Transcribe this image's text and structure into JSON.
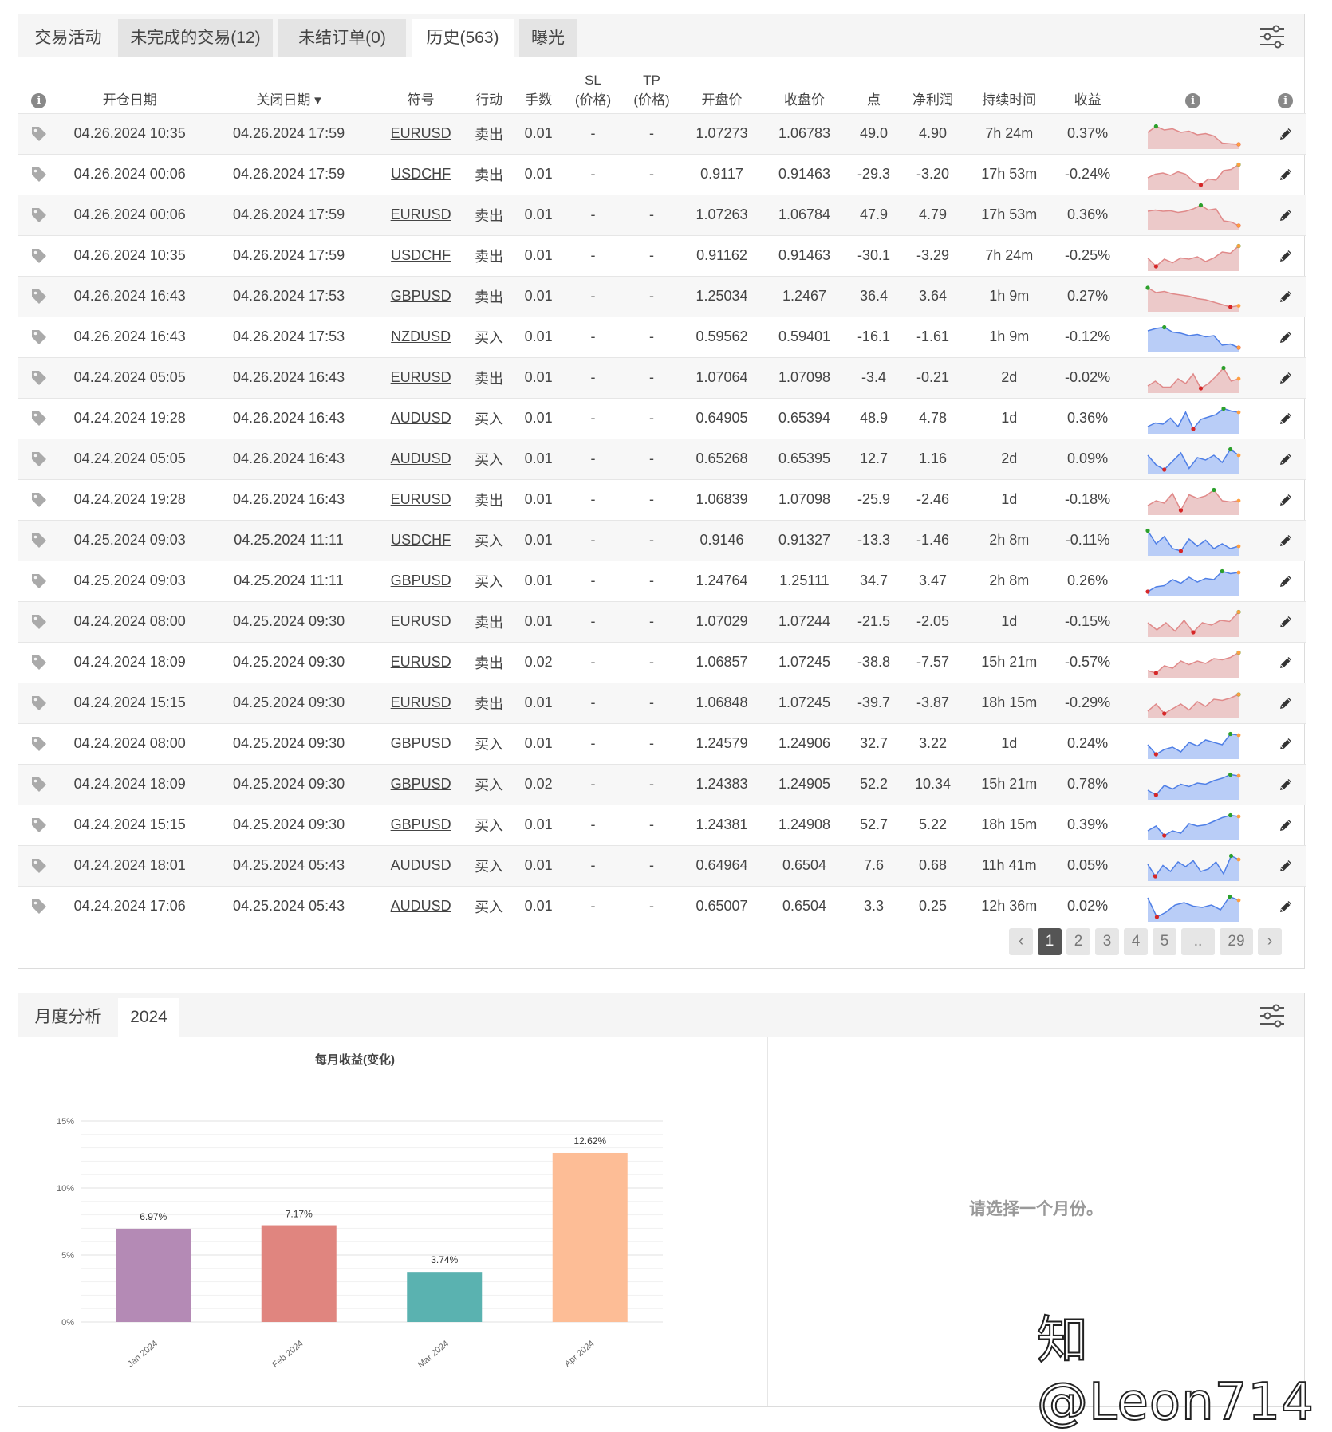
{
  "top_tabs": [
    {
      "label": "交易活动"
    },
    {
      "label": "未完成的交易(12)"
    },
    {
      "label": "未结订单(0)"
    },
    {
      "label": "历史(563)"
    },
    {
      "label": "曝光"
    }
  ],
  "columns": {
    "open_date": "开仓日期",
    "close_date": "关闭日期 ▾",
    "symbol": "符号",
    "action": "行动",
    "lots": "手数",
    "sl": "SL",
    "sl_sub": "(价格)",
    "tp": "TP",
    "tp_sub": "(价格)",
    "open_price": "开盘价",
    "close_price": "收盘价",
    "pips": "点",
    "net_profit": "净利润",
    "duration": "持续时间",
    "gain": "收益"
  },
  "colors": {
    "pos": "#2ca02c",
    "neg": "#d9534f",
    "spark_red_fill": "#ecc9c9",
    "spark_red_line": "#e08a8a",
    "spark_blue_fill": "#b9cdf7",
    "spark_blue_line": "#4f7fe6"
  },
  "trades": [
    {
      "open": "04.26.2024 10:35",
      "close": "04.26.2024 17:59",
      "symbol": "EURUSD",
      "action": "卖出",
      "lots": "0.01",
      "sl": "-",
      "tp": "-",
      "open_price": "1.07273",
      "close_price": "1.06783",
      "pips": "49.0",
      "profit": "4.90",
      "duration": "7h 24m",
      "gain": "0.37%",
      "positive": true,
      "spark": [
        0.6,
        0.85,
        0.7,
        0.75,
        0.6,
        0.65,
        0.5,
        0.55,
        0.45,
        0.15,
        0.12,
        0.1
      ],
      "spark_color": "red"
    },
    {
      "open": "04.26.2024 00:06",
      "close": "04.26.2024 17:59",
      "symbol": "USDCHF",
      "action": "卖出",
      "lots": "0.01",
      "sl": "-",
      "tp": "-",
      "open_price": "0.9117",
      "close_price": "0.91463",
      "pips": "-29.3",
      "profit": "-3.20",
      "duration": "17h 53m",
      "gain": "-0.24%",
      "positive": false,
      "spark": [
        0.4,
        0.55,
        0.6,
        0.5,
        0.65,
        0.55,
        0.25,
        0.1,
        0.35,
        0.3,
        0.7,
        0.75,
        0.95
      ],
      "spark_color": "red"
    },
    {
      "open": "04.26.2024 00:06",
      "close": "04.26.2024 17:59",
      "symbol": "EURUSD",
      "action": "卖出",
      "lots": "0.01",
      "sl": "-",
      "tp": "-",
      "open_price": "1.07263",
      "close_price": "1.06784",
      "pips": "47.9",
      "profit": "4.79",
      "duration": "17h 53m",
      "gain": "0.36%",
      "positive": true,
      "spark": [
        0.7,
        0.75,
        0.7,
        0.72,
        0.65,
        0.7,
        0.8,
        0.95,
        0.75,
        0.8,
        0.3,
        0.25,
        0.1
      ],
      "spark_color": "red"
    },
    {
      "open": "04.26.2024 10:35",
      "close": "04.26.2024 17:59",
      "symbol": "USDCHF",
      "action": "卖出",
      "lots": "0.01",
      "sl": "-",
      "tp": "-",
      "open_price": "0.91162",
      "close_price": "0.91463",
      "pips": "-30.1",
      "profit": "-3.29",
      "duration": "7h 24m",
      "gain": "-0.25%",
      "positive": false,
      "spark": [
        0.45,
        0.1,
        0.4,
        0.25,
        0.45,
        0.4,
        0.5,
        0.3,
        0.45,
        0.7,
        0.65,
        0.95
      ],
      "spark_color": "red"
    },
    {
      "open": "04.26.2024 16:43",
      "close": "04.26.2024 17:53",
      "symbol": "GBPUSD",
      "action": "卖出",
      "lots": "0.01",
      "sl": "-",
      "tp": "-",
      "open_price": "1.25034",
      "close_price": "1.2467",
      "pips": "36.4",
      "profit": "3.64",
      "duration": "1h 9m",
      "gain": "0.27%",
      "positive": true,
      "spark": [
        0.9,
        0.7,
        0.75,
        0.65,
        0.6,
        0.55,
        0.45,
        0.4,
        0.3,
        0.2,
        0.1,
        0.15
      ],
      "spark_color": "red"
    },
    {
      "open": "04.26.2024 16:43",
      "close": "04.26.2024 17:53",
      "symbol": "NZDUSD",
      "action": "买入",
      "lots": "0.01",
      "sl": "-",
      "tp": "-",
      "open_price": "0.59562",
      "close_price": "0.59401",
      "pips": "-16.1",
      "profit": "-1.61",
      "duration": "1h 9m",
      "gain": "-0.12%",
      "positive": false,
      "spark": [
        0.8,
        0.9,
        0.95,
        0.75,
        0.7,
        0.6,
        0.65,
        0.55,
        0.6,
        0.2,
        0.25,
        0.1
      ],
      "spark_color": "blue"
    },
    {
      "open": "04.24.2024 05:05",
      "close": "04.26.2024 16:43",
      "symbol": "EURUSD",
      "action": "卖出",
      "lots": "0.01",
      "sl": "-",
      "tp": "-",
      "open_price": "1.07064",
      "close_price": "1.07098",
      "pips": "-3.4",
      "profit": "-0.21",
      "duration": "2d",
      "gain": "-0.02%",
      "positive": false,
      "spark": [
        0.2,
        0.4,
        0.15,
        0.15,
        0.5,
        0.3,
        0.7,
        0.1,
        0.3,
        0.6,
        0.95,
        0.4,
        0.5
      ],
      "spark_color": "red"
    },
    {
      "open": "04.24.2024 19:28",
      "close": "04.26.2024 16:43",
      "symbol": "AUDUSD",
      "action": "买入",
      "lots": "0.01",
      "sl": "-",
      "tp": "-",
      "open_price": "0.64905",
      "close_price": "0.65394",
      "pips": "48.9",
      "profit": "4.78",
      "duration": "1d",
      "gain": "0.36%",
      "positive": true,
      "spark": [
        0.2,
        0.35,
        0.3,
        0.55,
        0.2,
        0.8,
        0.1,
        0.5,
        0.6,
        0.7,
        0.95,
        0.85,
        0.8
      ],
      "spark_color": "blue"
    },
    {
      "open": "04.24.2024 05:05",
      "close": "04.26.2024 16:43",
      "symbol": "AUDUSD",
      "action": "买入",
      "lots": "0.01",
      "sl": "-",
      "tp": "-",
      "open_price": "0.65268",
      "close_price": "0.65395",
      "pips": "12.7",
      "profit": "1.16",
      "duration": "2d",
      "gain": "0.09%",
      "positive": true,
      "spark": [
        0.7,
        0.3,
        0.1,
        0.45,
        0.8,
        0.15,
        0.6,
        0.5,
        0.7,
        0.4,
        0.95,
        0.7
      ],
      "spark_color": "blue"
    },
    {
      "open": "04.24.2024 19:28",
      "close": "04.26.2024 16:43",
      "symbol": "EURUSD",
      "action": "卖出",
      "lots": "0.01",
      "sl": "-",
      "tp": "-",
      "open_price": "1.06839",
      "close_price": "1.07098",
      "pips": "-25.9",
      "profit": "-2.46",
      "duration": "1d",
      "gain": "-0.18%",
      "positive": false,
      "spark": [
        0.3,
        0.5,
        0.4,
        0.8,
        0.1,
        0.75,
        0.6,
        0.7,
        0.95,
        0.5,
        0.45,
        0.5
      ],
      "spark_color": "red"
    },
    {
      "open": "04.25.2024 09:03",
      "close": "04.25.2024 11:11",
      "symbol": "USDCHF",
      "action": "买入",
      "lots": "0.01",
      "sl": "-",
      "tp": "-",
      "open_price": "0.9146",
      "close_price": "0.91327",
      "pips": "-13.3",
      "profit": "-1.46",
      "duration": "2h 8m",
      "gain": "-0.11%",
      "positive": false,
      "spark": [
        0.95,
        0.4,
        0.7,
        0.2,
        0.1,
        0.6,
        0.3,
        0.55,
        0.2,
        0.4,
        0.2,
        0.3
      ],
      "spark_color": "blue"
    },
    {
      "open": "04.25.2024 09:03",
      "close": "04.25.2024 11:11",
      "symbol": "GBPUSD",
      "action": "买入",
      "lots": "0.01",
      "sl": "-",
      "tp": "-",
      "open_price": "1.24764",
      "close_price": "1.25111",
      "pips": "34.7",
      "profit": "3.47",
      "duration": "2h 8m",
      "gain": "0.26%",
      "positive": true,
      "spark": [
        0.1,
        0.3,
        0.35,
        0.6,
        0.45,
        0.7,
        0.5,
        0.65,
        0.6,
        0.95,
        0.85,
        0.9
      ],
      "spark_color": "blue"
    },
    {
      "open": "04.24.2024 08:00",
      "close": "04.25.2024 09:30",
      "symbol": "EURUSD",
      "action": "卖出",
      "lots": "0.01",
      "sl": "-",
      "tp": "-",
      "open_price": "1.07029",
      "close_price": "1.07244",
      "pips": "-21.5",
      "profit": "-2.05",
      "duration": "1d",
      "gain": "-0.15%",
      "positive": false,
      "spark": [
        0.5,
        0.2,
        0.5,
        0.15,
        0.6,
        0.1,
        0.5,
        0.4,
        0.6,
        0.55,
        0.95
      ],
      "spark_color": "red"
    },
    {
      "open": "04.24.2024 18:09",
      "close": "04.25.2024 09:30",
      "symbol": "EURUSD",
      "action": "卖出",
      "lots": "0.02",
      "sl": "-",
      "tp": "-",
      "open_price": "1.06857",
      "close_price": "1.07245",
      "pips": "-38.8",
      "profit": "-7.57",
      "duration": "15h 21m",
      "gain": "-0.57%",
      "positive": false,
      "spark": [
        0.2,
        0.1,
        0.4,
        0.3,
        0.6,
        0.45,
        0.6,
        0.5,
        0.7,
        0.65,
        0.75,
        0.95
      ],
      "spark_color": "red"
    },
    {
      "open": "04.24.2024 15:15",
      "close": "04.25.2024 09:30",
      "symbol": "EURUSD",
      "action": "卖出",
      "lots": "0.01",
      "sl": "-",
      "tp": "-",
      "open_price": "1.06848",
      "close_price": "1.07245",
      "pips": "-39.7",
      "profit": "-3.87",
      "duration": "18h 15m",
      "gain": "-0.29%",
      "positive": false,
      "spark": [
        0.2,
        0.5,
        0.1,
        0.3,
        0.5,
        0.25,
        0.6,
        0.4,
        0.7,
        0.65,
        0.75,
        0.9
      ],
      "spark_color": "red"
    },
    {
      "open": "04.24.2024 08:00",
      "close": "04.25.2024 09:30",
      "symbol": "GBPUSD",
      "action": "买入",
      "lots": "0.01",
      "sl": "-",
      "tp": "-",
      "open_price": "1.24579",
      "close_price": "1.24906",
      "pips": "32.7",
      "profit": "3.22",
      "duration": "1d",
      "gain": "0.24%",
      "positive": true,
      "spark": [
        0.5,
        0.1,
        0.3,
        0.4,
        0.2,
        0.6,
        0.45,
        0.7,
        0.6,
        0.5,
        0.95,
        0.9
      ],
      "spark_color": "blue"
    },
    {
      "open": "04.24.2024 18:09",
      "close": "04.25.2024 09:30",
      "symbol": "GBPUSD",
      "action": "买入",
      "lots": "0.02",
      "sl": "-",
      "tp": "-",
      "open_price": "1.24383",
      "close_price": "1.24905",
      "pips": "52.2",
      "profit": "10.34",
      "duration": "15h 21m",
      "gain": "0.78%",
      "positive": true,
      "spark": [
        0.3,
        0.1,
        0.5,
        0.35,
        0.55,
        0.45,
        0.6,
        0.55,
        0.7,
        0.8,
        0.95,
        0.9
      ],
      "spark_color": "blue"
    },
    {
      "open": "04.24.2024 15:15",
      "close": "04.25.2024 09:30",
      "symbol": "GBPUSD",
      "action": "买入",
      "lots": "0.01",
      "sl": "-",
      "tp": "-",
      "open_price": "1.24381",
      "close_price": "1.24908",
      "pips": "52.7",
      "profit": "5.22",
      "duration": "18h 15m",
      "gain": "0.39%",
      "positive": true,
      "spark": [
        0.3,
        0.5,
        0.1,
        0.3,
        0.2,
        0.6,
        0.5,
        0.55,
        0.7,
        0.85,
        0.95,
        0.9
      ],
      "spark_color": "blue"
    },
    {
      "open": "04.24.2024 18:01",
      "close": "04.25.2024 05:43",
      "symbol": "AUDUSD",
      "action": "买入",
      "lots": "0.01",
      "sl": "-",
      "tp": "-",
      "open_price": "0.64964",
      "close_price": "0.6504",
      "pips": "7.6",
      "profit": "0.68",
      "duration": "11h 41m",
      "gain": "0.05%",
      "positive": true,
      "spark": [
        0.6,
        0.1,
        0.55,
        0.3,
        0.7,
        0.5,
        0.75,
        0.3,
        0.4,
        0.7,
        0.2,
        0.95,
        0.8
      ],
      "spark_color": "blue"
    },
    {
      "open": "04.24.2024 17:06",
      "close": "04.25.2024 05:43",
      "symbol": "AUDUSD",
      "action": "买入",
      "lots": "0.01",
      "sl": "-",
      "tp": "-",
      "open_price": "0.65007",
      "close_price": "0.6504",
      "pips": "3.3",
      "profit": "0.25",
      "duration": "12h 36m",
      "gain": "0.02%",
      "positive": true,
      "spark": [
        0.9,
        0.1,
        0.3,
        0.6,
        0.7,
        0.55,
        0.5,
        0.6,
        0.4,
        0.95,
        0.8
      ],
      "spark_color": "blue"
    }
  ],
  "pager": {
    "prev": "‹",
    "pages": [
      "1",
      "2",
      "3",
      "4",
      "5",
      "..",
      "29"
    ],
    "next": "›",
    "active": "1"
  },
  "bottom_tabs": [
    {
      "label": "月度分析"
    },
    {
      "label": "2024"
    }
  ],
  "empty_message": "请选择一个月份。",
  "watermark": "知@Leon714",
  "chart_data": {
    "type": "bar",
    "title": "每月收益(变化)",
    "categories": [
      "Jan 2024",
      "Feb 2024",
      "Mar 2024",
      "Apr 2024"
    ],
    "values": [
      6.97,
      7.17,
      3.74,
      12.62
    ],
    "value_labels": [
      "6.97%",
      "7.17%",
      "3.74%",
      "12.62%"
    ],
    "colors": [
      "#b48ab5",
      "#e0857f",
      "#5ab2b0",
      "#fdbd96"
    ],
    "yticks": [
      "0%",
      "5%",
      "10%",
      "15%"
    ],
    "ytick_values": [
      0,
      5,
      10,
      15
    ],
    "ylim": [
      0,
      15
    ],
    "xlabel": "",
    "ylabel": "",
    "grid": true
  }
}
